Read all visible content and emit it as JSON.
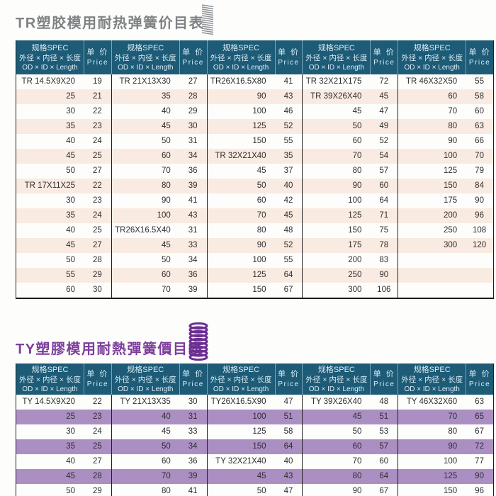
{
  "colors": {
    "header_bg": "#1d5b77",
    "header_text": "#dceef6",
    "tr_title_color": "#7f8285",
    "tr_stripe": "#f9ebe1",
    "ty_title_color": "#7c3e9c",
    "ty_stripe": "#ab8fc3",
    "tr_spring_color": "#8e9397",
    "ty_spring_color": "#6b2e91"
  },
  "header_template": {
    "spec_lines": [
      "规格SPEC",
      "外径 × 内径 × 长度",
      "OD × ID × Length"
    ],
    "price_lines": [
      "单 价",
      "Price"
    ]
  },
  "tables": {
    "tr": {
      "title": "TR塑胶模用耐热弹簧价目表",
      "icon": "grey-coil-spring-icon",
      "row_count": 15,
      "groups": [
        [
          [
            "TR 14.5X9X20",
            "19"
          ],
          [
            "25",
            "21"
          ],
          [
            "30",
            "22"
          ],
          [
            "35",
            "23"
          ],
          [
            "40",
            "24"
          ],
          [
            "45",
            "25"
          ],
          [
            "50",
            "27"
          ],
          [
            "TR 17X11X25",
            "22"
          ],
          [
            "30",
            "23"
          ],
          [
            "35",
            "24"
          ],
          [
            "40",
            "25"
          ],
          [
            "45",
            "27"
          ],
          [
            "50",
            "28"
          ],
          [
            "55",
            "29"
          ],
          [
            "60",
            "30"
          ]
        ],
        [
          [
            "TR 21X13X30",
            "27"
          ],
          [
            "35",
            "28"
          ],
          [
            "40",
            "29"
          ],
          [
            "45",
            "30"
          ],
          [
            "50",
            "31"
          ],
          [
            "60",
            "34"
          ],
          [
            "70",
            "36"
          ],
          [
            "80",
            "39"
          ],
          [
            "90",
            "41"
          ],
          [
            "100",
            "43"
          ],
          [
            "TR26X16.5X40",
            "31"
          ],
          [
            "45",
            "33"
          ],
          [
            "50",
            "34"
          ],
          [
            "60",
            "36"
          ],
          [
            "70",
            "39"
          ]
        ],
        [
          [
            "TR26X16.5X80",
            "41"
          ],
          [
            "90",
            "43"
          ],
          [
            "100",
            "46"
          ],
          [
            "125",
            "52"
          ],
          [
            "150",
            "55"
          ],
          [
            "TR 32X21X40",
            "35"
          ],
          [
            "45",
            "37"
          ],
          [
            "50",
            "40"
          ],
          [
            "60",
            "42"
          ],
          [
            "70",
            "45"
          ],
          [
            "80",
            "48"
          ],
          [
            "90",
            "52"
          ],
          [
            "100",
            "55"
          ],
          [
            "125",
            "64"
          ],
          [
            "150",
            "67"
          ]
        ],
        [
          [
            "TR 32X21X175",
            "72"
          ],
          [
            "TR 39X26X40",
            "45"
          ],
          [
            "45",
            "47"
          ],
          [
            "50",
            "49"
          ],
          [
            "60",
            "52"
          ],
          [
            "70",
            "54"
          ],
          [
            "80",
            "57"
          ],
          [
            "90",
            "60"
          ],
          [
            "100",
            "64"
          ],
          [
            "125",
            "71"
          ],
          [
            "150",
            "75"
          ],
          [
            "175",
            "78"
          ],
          [
            "200",
            "83"
          ],
          [
            "250",
            "90"
          ],
          [
            "300",
            "106"
          ]
        ],
        [
          [
            "TR 46X32X50",
            "55"
          ],
          [
            "60",
            "58"
          ],
          [
            "70",
            "60"
          ],
          [
            "80",
            "63"
          ],
          [
            "90",
            "66"
          ],
          [
            "100",
            "70"
          ],
          [
            "125",
            "79"
          ],
          [
            "150",
            "84"
          ],
          [
            "175",
            "90"
          ],
          [
            "200",
            "96"
          ],
          [
            "250",
            "108"
          ],
          [
            "300",
            "120"
          ],
          [
            "",
            ""
          ],
          [
            "",
            ""
          ],
          [
            "",
            ""
          ]
        ]
      ]
    },
    "ty": {
      "title": "TY塑膠模用耐熱彈簧價目表",
      "icon": "purple-coil-spring-icon",
      "row_count": 7,
      "groups": [
        [
          [
            "TY 14.5X9X20",
            "22"
          ],
          [
            "25",
            "23"
          ],
          [
            "30",
            "24"
          ],
          [
            "35",
            "25"
          ],
          [
            "40",
            "27"
          ],
          [
            "45",
            "28"
          ],
          [
            "50",
            "29"
          ]
        ],
        [
          [
            "TY 21X13X35",
            "30"
          ],
          [
            "40",
            "31"
          ],
          [
            "45",
            "33"
          ],
          [
            "50",
            "34"
          ],
          [
            "60",
            "36"
          ],
          [
            "70",
            "39"
          ],
          [
            "80",
            "41"
          ]
        ],
        [
          [
            "TY26X16.5X90",
            "47"
          ],
          [
            "100",
            "51"
          ],
          [
            "125",
            "58"
          ],
          [
            "150",
            "64"
          ],
          [
            "TY 32X21X40",
            "40"
          ],
          [
            "45",
            "43"
          ],
          [
            "50",
            "47"
          ]
        ],
        [
          [
            "TY 39X26X40",
            "48"
          ],
          [
            "45",
            "51"
          ],
          [
            "50",
            "53"
          ],
          [
            "60",
            "57"
          ],
          [
            "70",
            "60"
          ],
          [
            "80",
            "64"
          ],
          [
            "90",
            "67"
          ]
        ],
        [
          [
            "TY 46X32X60",
            "63"
          ],
          [
            "70",
            "65"
          ],
          [
            "80",
            "67"
          ],
          [
            "90",
            "72"
          ],
          [
            "100",
            "77"
          ],
          [
            "125",
            "90"
          ],
          [
            "150",
            "96"
          ]
        ]
      ]
    }
  }
}
